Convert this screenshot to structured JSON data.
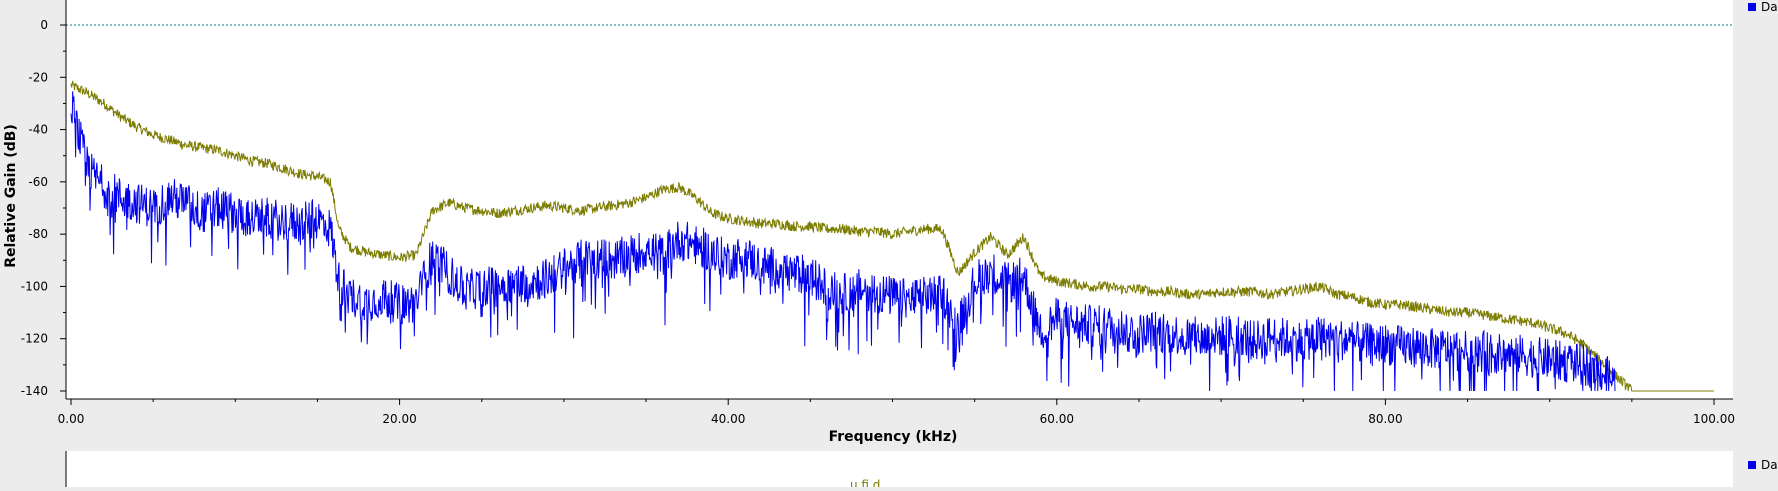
{
  "colors": {
    "background": "#ececec",
    "plot_background": "#ffffff",
    "axis": "#000000",
    "reference_line": "#008080",
    "series_blue": "#0000ee",
    "series_olive": "#7c7c00"
  },
  "legend": {
    "top_label": "Da",
    "bottom_label": "Da",
    "marker_icon": "square-icon"
  },
  "bottom_panel": {
    "partial_text": "u    fi    d"
  },
  "chart_data": {
    "type": "line",
    "xlabel": "Frequency (kHz)",
    "ylabel": "Relative Gain (dB)",
    "xlim": [
      0,
      100
    ],
    "ylim": [
      -140,
      0
    ],
    "x_ticks": [
      "0.00",
      "20.00",
      "40.00",
      "60.00",
      "80.00",
      "100.00"
    ],
    "y_ticks": [
      "0",
      "-20",
      "-40",
      "-60",
      "-80",
      "-100",
      "-120",
      "-140"
    ],
    "reference_line_y": 0,
    "series": [
      {
        "color": "#7c7c00",
        "x": [
          0,
          1,
          2,
          3,
          4,
          5,
          6,
          7,
          8,
          9,
          10,
          11,
          12,
          13,
          14,
          15,
          15.8,
          16.3,
          17,
          18,
          19,
          20,
          21,
          22,
          23,
          24,
          25,
          26,
          27,
          28,
          29,
          30,
          31,
          32,
          33,
          34,
          35,
          36,
          37,
          38,
          39,
          40,
          41,
          42,
          43,
          44,
          45,
          46,
          47,
          48,
          49,
          50,
          51,
          52,
          53,
          54,
          55,
          56,
          57,
          58,
          59,
          60,
          61,
          62,
          63,
          64,
          65,
          66,
          67,
          68,
          69,
          70,
          71,
          72,
          73,
          74,
          75,
          76,
          77,
          78,
          79,
          80,
          81,
          82,
          83,
          84,
          85,
          86,
          87,
          88,
          89,
          90,
          91,
          92,
          93,
          94,
          95,
          96,
          97,
          98,
          99,
          100
        ],
        "y": [
          -23,
          -26,
          -30,
          -35,
          -39,
          -42,
          -44,
          -46,
          -47,
          -48,
          -50,
          -52,
          -53,
          -55,
          -57,
          -58,
          -60,
          -78,
          -85,
          -87,
          -88,
          -89,
          -88,
          -71,
          -68,
          -70,
          -71,
          -72,
          -71,
          -70,
          -69,
          -70,
          -71,
          -70,
          -69,
          -68,
          -66,
          -63,
          -62,
          -66,
          -72,
          -74,
          -75,
          -76,
          -76,
          -77,
          -77,
          -78,
          -78,
          -79,
          -79,
          -80,
          -79,
          -78,
          -78,
          -95,
          -87,
          -81,
          -88,
          -81,
          -96,
          -98,
          -99,
          -100,
          -100,
          -101,
          -101,
          -102,
          -102,
          -103,
          -103,
          -102,
          -102,
          -102,
          -103,
          -102,
          -101,
          -100,
          -103,
          -104,
          -106,
          -107,
          -107,
          -108,
          -109,
          -110,
          -110,
          -111,
          -112,
          -113,
          -114,
          -116,
          -118,
          -122,
          -128,
          -134,
          -140,
          -140,
          -140,
          -140,
          -140,
          -140
        ]
      },
      {
        "color": "#0000ee",
        "x": [
          0,
          1,
          2,
          3,
          4,
          5,
          6,
          7,
          8,
          9,
          10,
          11,
          12,
          13,
          14,
          15,
          15.8,
          16.3,
          17,
          18,
          19,
          20,
          21,
          22,
          23,
          24,
          25,
          26,
          27,
          28,
          29,
          30,
          31,
          32,
          33,
          34,
          35,
          36,
          37,
          38,
          39,
          40,
          41,
          42,
          43,
          44,
          45,
          46,
          47,
          48,
          49,
          50,
          51,
          52,
          53,
          54,
          55,
          56,
          57,
          58,
          59,
          60,
          61,
          62,
          63,
          64,
          65,
          66,
          67,
          68,
          69,
          70,
          71,
          72,
          73,
          74,
          75,
          76,
          77,
          78,
          79,
          80,
          81,
          82,
          83,
          84,
          85,
          86,
          87,
          88,
          89,
          90,
          91,
          92,
          93,
          94
        ],
        "y": [
          -30,
          -55,
          -62,
          -66,
          -68,
          -70,
          -66,
          -68,
          -72,
          -70,
          -72,
          -74,
          -74,
          -75,
          -76,
          -74,
          -78,
          -98,
          -104,
          -106,
          -104,
          -107,
          -106,
          -88,
          -95,
          -102,
          -100,
          -100,
          -99,
          -98,
          -97,
          -93,
          -90,
          -89,
          -90,
          -88,
          -86,
          -88,
          -82,
          -84,
          -87,
          -90,
          -88,
          -92,
          -93,
          -95,
          -96,
          -101,
          -103,
          -101,
          -102,
          -104,
          -105,
          -104,
          -102,
          -115,
          -98,
          -94,
          -99,
          -96,
          -118,
          -112,
          -114,
          -115,
          -115,
          -116,
          -118,
          -117,
          -118,
          -119,
          -120,
          -119,
          -118,
          -121,
          -119,
          -120,
          -121,
          -119,
          -120,
          -121,
          -122,
          -122,
          -123,
          -123,
          -124,
          -124,
          -125,
          -125,
          -126,
          -126,
          -127,
          -128,
          -129,
          -130,
          -132,
          -137
        ]
      }
    ]
  }
}
